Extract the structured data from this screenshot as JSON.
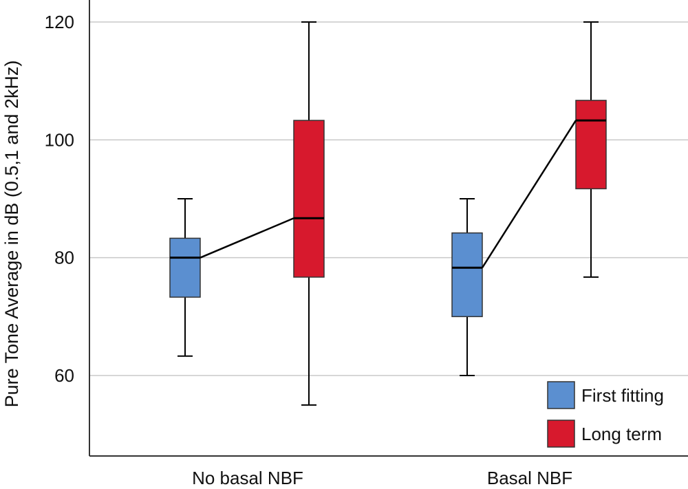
{
  "chart_data": {
    "type": "box",
    "ylabel": "Pure Tone Average in dB (0.5,1 and 2kHz)",
    "xlabel": "",
    "ylim": [
      46,
      123
    ],
    "yticks": [
      60,
      80,
      100,
      120
    ],
    "grid": true,
    "legend_position": "bottom-right",
    "categories": [
      "No basal NBF",
      "Basal NBF"
    ],
    "series": [
      {
        "name": "First fitting",
        "color": "#5b8fd0",
        "boxes": [
          {
            "min": 63.3,
            "q1": 73.3,
            "median": 80.0,
            "q3": 83.3,
            "max": 90.0
          },
          {
            "min": 60.0,
            "q1": 70.0,
            "median": 78.3,
            "q3": 84.2,
            "max": 90.0
          }
        ]
      },
      {
        "name": "Long term",
        "color": "#d7192d",
        "boxes": [
          {
            "min": 55.0,
            "q1": 76.7,
            "median": 86.7,
            "q3": 103.3,
            "max": 120.0
          },
          {
            "min": 76.7,
            "q1": 91.7,
            "median": 103.3,
            "q3": 106.7,
            "max": 120.0
          }
        ]
      }
    ]
  }
}
